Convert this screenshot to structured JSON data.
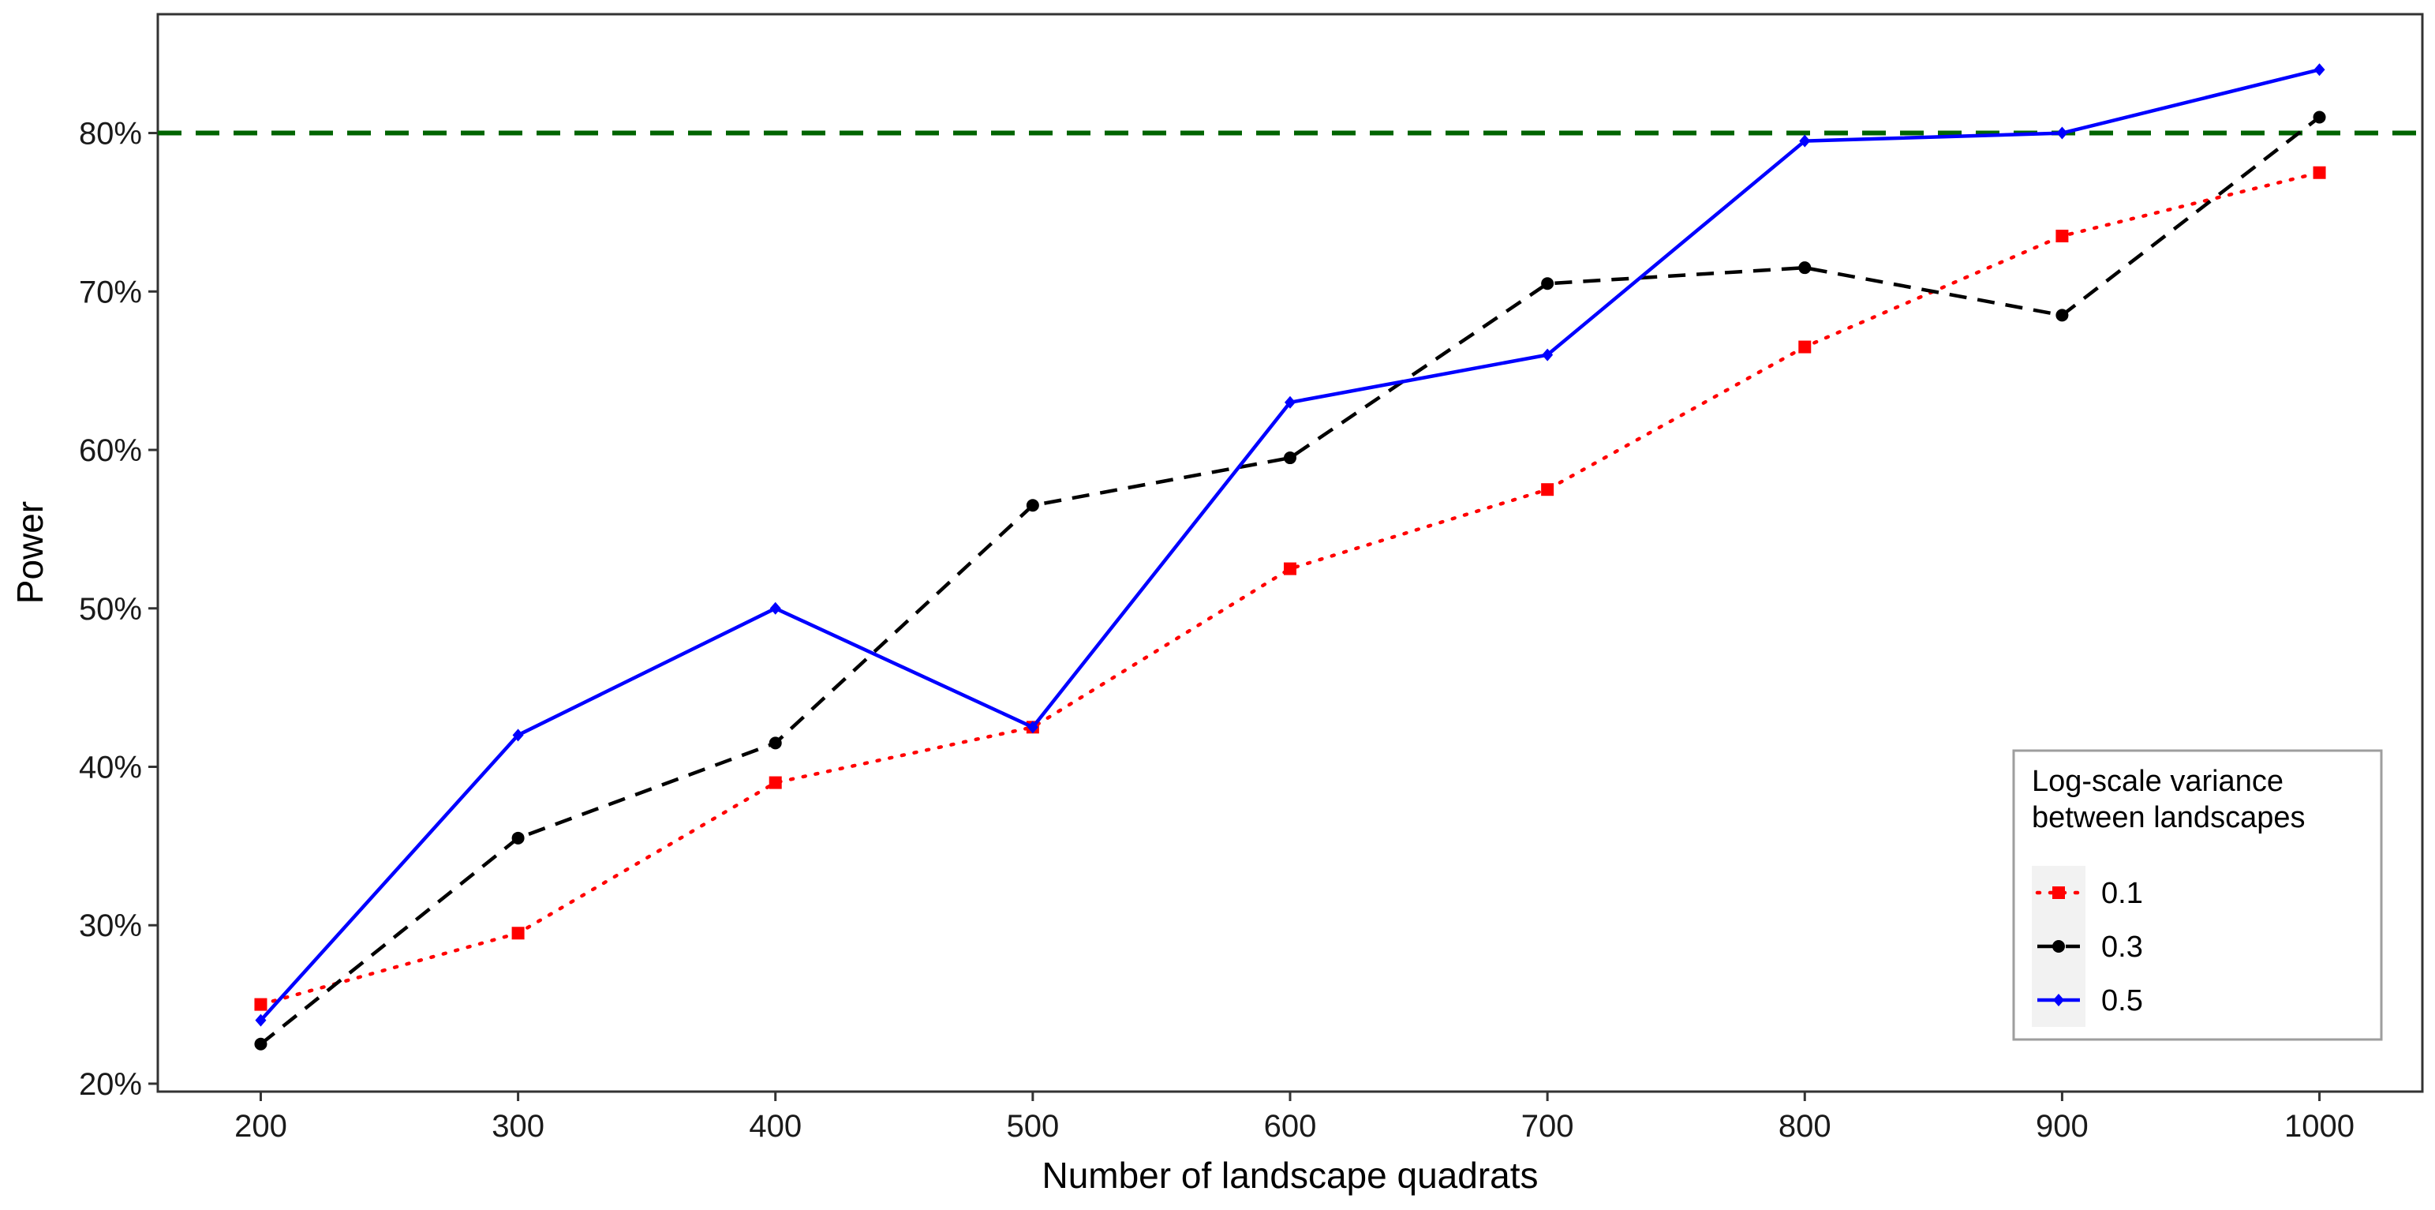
{
  "chart_data": {
    "type": "line",
    "xlabel": "Number of landscape quadrats",
    "ylabel": "Power",
    "x": [
      200,
      300,
      400,
      500,
      600,
      700,
      800,
      900,
      1000
    ],
    "xlim": [
      160,
      1040
    ],
    "ylim": [
      19.5,
      87.5
    ],
    "x_ticks": [
      200,
      300,
      400,
      500,
      600,
      700,
      800,
      900,
      1000
    ],
    "y_ticks": [
      20,
      30,
      40,
      50,
      60,
      70,
      80
    ],
    "y_tick_labels": [
      "20%",
      "30%",
      "40%",
      "50%",
      "60%",
      "70%",
      "80%"
    ],
    "grid": false,
    "reference_line": {
      "y": 80,
      "style": "dashed",
      "color": "#006400"
    },
    "legend": {
      "title": [
        "Log-scale variance",
        "between landscapes"
      ],
      "placement": "bottom-right"
    },
    "series": [
      {
        "name": "0.1",
        "color": "#ff0000",
        "line_style": "dotted",
        "marker": "square",
        "values": [
          25.0,
          29.5,
          39.0,
          42.5,
          52.5,
          57.5,
          66.5,
          73.5,
          77.5
        ]
      },
      {
        "name": "0.3",
        "color": "#000000",
        "line_style": "dashed",
        "marker": "circle",
        "values": [
          22.5,
          35.5,
          41.5,
          56.5,
          59.5,
          70.5,
          71.5,
          68.5,
          81.0
        ]
      },
      {
        "name": "0.5",
        "color": "#0000ff",
        "line_style": "solid",
        "marker": "diamond",
        "values": [
          24.0,
          42.0,
          50.0,
          42.5,
          63.0,
          66.0,
          79.5,
          80.0,
          84.0
        ]
      }
    ]
  }
}
